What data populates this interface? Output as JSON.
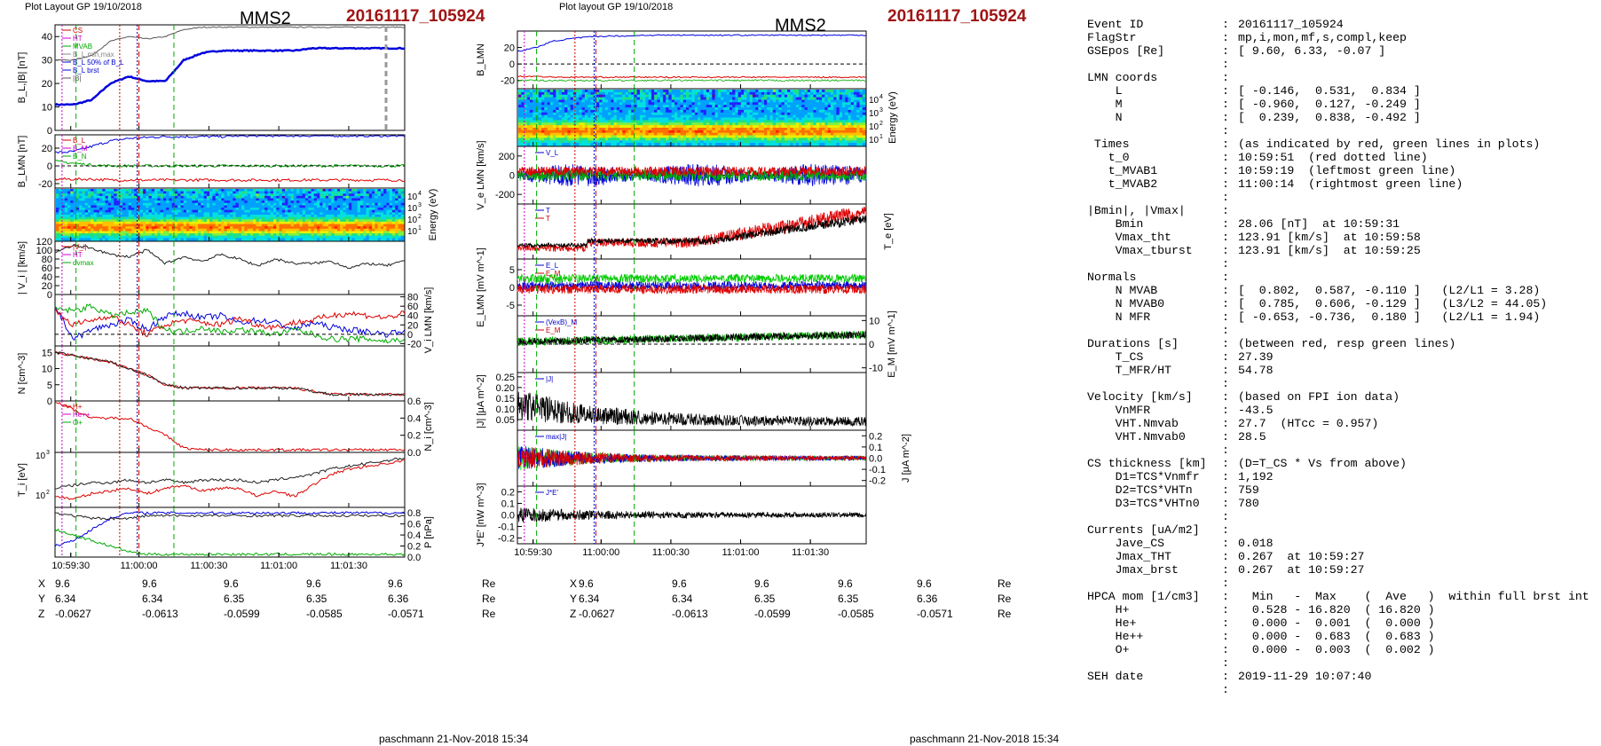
{
  "left_header": "Plot Layout GP 19/10/2018",
  "mid_header": "Plot layout GP 19/10/2018",
  "spacecraft": "MMS2",
  "event_id": "20161117_105924",
  "footer": "paschmann 21-Nov-2018 15:34",
  "time_ticks": [
    "10:59:30",
    "11:00:00",
    "11:00:30",
    "11:01:00",
    "11:01:30"
  ],
  "positions": {
    "labels": [
      "X",
      "Y",
      "Z"
    ],
    "unit": "Re",
    "X": [
      "9.6",
      "9.6",
      "9.6",
      "9.6",
      "9.6"
    ],
    "Y": [
      "6.34",
      "6.34",
      "6.35",
      "6.35",
      "6.36"
    ],
    "Z": [
      "-0.0627",
      "-0.0613",
      "-0.0599",
      "-0.0585",
      "-0.0571"
    ]
  },
  "info_lines": [
    [
      "Event ID",
      ":",
      "20161117_105924"
    ],
    [
      "FlagStr",
      ":",
      "mp,i,mon,mf,s,compl,keep"
    ],
    [
      "GSEpos [Re]",
      ":",
      "[ 9.60, 6.33, -0.07 ]"
    ],
    [
      "",
      ":",
      ""
    ],
    [
      "LMN coords",
      ":",
      ""
    ],
    [
      "    L",
      ":",
      "[ -0.146,  0.531,  0.834 ]"
    ],
    [
      "    M",
      ":",
      "[ -0.960,  0.127, -0.249 ]"
    ],
    [
      "    N",
      ":",
      "[  0.239,  0.838, -0.492 ]"
    ],
    [
      "",
      ":",
      ""
    ],
    [
      " Times",
      ":",
      "(as indicated by red, green lines in plots)"
    ],
    [
      "   t_0",
      ":",
      "10:59:51  (red dotted line)"
    ],
    [
      "   t_MVAB1",
      ":",
      "10:59:19  (leftmost green line)"
    ],
    [
      "   t_MVAB2",
      ":",
      "11:00:14  (rightmost green line)"
    ],
    [
      "",
      ":",
      ""
    ],
    [
      "|Bmin|, |Vmax|",
      ":",
      ""
    ],
    [
      "    Bmin",
      ":",
      "28.06 [nT]  at 10:59:31"
    ],
    [
      "    Vmax_tht",
      ":",
      "123.91 [km/s]  at 10:59:58"
    ],
    [
      "    Vmax_tburst",
      ":",
      "123.91 [km/s]  at 10:59:25"
    ],
    [
      "",
      ":",
      ""
    ],
    [
      "Normals",
      ":",
      ""
    ],
    [
      "    N MVAB",
      ":",
      "[  0.802,  0.587, -0.110 ]   (L2/L1 = 3.28)"
    ],
    [
      "    N MVAB0",
      ":",
      "[  0.785,  0.606, -0.129 ]   (L3/L2 = 44.05)"
    ],
    [
      "    N MFR",
      ":",
      "[ -0.653, -0.736,  0.180 ]   (L2/L1 = 1.94)"
    ],
    [
      "",
      ":",
      ""
    ],
    [
      "Durations [s]",
      ":",
      "(between red, resp green lines)"
    ],
    [
      "    T_CS",
      ":",
      "27.39"
    ],
    [
      "    T_MFR/HT",
      ":",
      "54.78"
    ],
    [
      "",
      ":",
      ""
    ],
    [
      "Velocity [km/s]",
      ":",
      "(based on FPI ion data)"
    ],
    [
      "    VnMFR",
      ":",
      "-43.5"
    ],
    [
      "    VHT.Nmvab",
      ":",
      "27.7  (HTcc = 0.957)"
    ],
    [
      "    VHT.Nmvab0",
      ":",
      "28.5"
    ],
    [
      "",
      ":",
      ""
    ],
    [
      "CS thickness [km]",
      ":",
      "(D=T_CS * Vs from above)"
    ],
    [
      "    D1=TCS*Vnmfr",
      ":",
      "1,192"
    ],
    [
      "    D2=TCS*VHTn",
      ":",
      "759"
    ],
    [
      "    D3=TCS*VHTn0",
      ":",
      "780"
    ],
    [
      "",
      ":",
      ""
    ],
    [
      "Currents [uA/m2]",
      ":",
      ""
    ],
    [
      "    Jave_CS",
      ":",
      "0.018"
    ],
    [
      "    Jmax_THT",
      ":",
      "0.267  at 10:59:27"
    ],
    [
      "    Jmax_brst",
      ":",
      "0.267  at 10:59:27"
    ],
    [
      "",
      ":",
      ""
    ],
    [
      "HPCA mom [1/cm3]",
      ":",
      "  Min   -  Max    (  Ave   )  within full brst int"
    ],
    [
      "    H+",
      ":",
      "  0.528 - 16.820  ( 16.820 )"
    ],
    [
      "    He+",
      ":",
      "  0.000 -  0.001  (  0.000 )"
    ],
    [
      "    He++",
      ":",
      "  0.000 -  0.683  (  0.683 )"
    ],
    [
      "    O+",
      ":",
      "  0.000 -  0.003  (  0.002 )"
    ],
    [
      "",
      ":",
      ""
    ],
    [
      "SEH date",
      ":",
      "2019-11-29 10:07:40"
    ],
    [
      "",
      ":",
      ""
    ]
  ],
  "chart_data": [
    {
      "type": "line",
      "panel": "left-B",
      "ylabel": "B_L,|B| [nT]",
      "ylim": [
        0,
        45
      ],
      "yticks": [
        "0",
        "10",
        "20",
        "30",
        "40"
      ],
      "legend": [
        "CS",
        "HT",
        "MVAB",
        "B_L,min,max",
        "B_L 50% of B_L",
        "B_L brst",
        "|B|"
      ],
      "series": [
        {
          "name": "B_L",
          "color": "#0000dd",
          "values": [
            11,
            11,
            13,
            20,
            23,
            21,
            21,
            30,
            33,
            34,
            34,
            34,
            34,
            34,
            35,
            35,
            35,
            35,
            35,
            35
          ]
        },
        {
          "name": "|B|",
          "color": "#555555",
          "values": [
            30,
            30,
            32,
            38,
            40,
            39,
            40,
            43,
            44,
            44,
            44,
            44,
            44,
            44,
            44,
            44,
            44,
            44,
            44,
            44
          ]
        }
      ]
    },
    {
      "type": "line",
      "panel": "left-BLMN",
      "ylabel": "B_LMN [nT]",
      "ylim": [
        -25,
        35
      ],
      "yticks": [
        "-20",
        "0",
        "20"
      ],
      "legend": [
        "B_L",
        "B_M",
        "B_N"
      ],
      "series": [
        {
          "name": "B_L",
          "color": "#0000dd",
          "values": [
            15,
            16,
            22,
            28,
            31,
            32,
            33,
            33,
            33,
            33,
            34,
            34,
            34,
            34,
            34,
            34,
            34,
            34,
            34,
            34
          ]
        },
        {
          "name": "B_M",
          "color": "#dd0000",
          "values": [
            -15,
            -15,
            -15,
            -16,
            -16,
            -16,
            -16,
            -16,
            -16,
            -16,
            -16,
            -16,
            -16,
            -16,
            -16,
            -16,
            -16,
            -16,
            -16,
            -16
          ]
        },
        {
          "name": "B_N",
          "color": "#00aa00",
          "values": [
            5,
            3,
            1,
            0,
            0,
            0,
            0,
            0,
            0,
            0,
            0,
            0,
            0,
            0,
            0,
            0,
            0,
            0,
            0,
            0
          ]
        }
      ]
    },
    {
      "type": "heatmap",
      "panel": "left-spectrogram",
      "ylabel": "Energy (eV)",
      "yticks": [
        "10^1",
        "10^2",
        "10^3",
        "10^4"
      ]
    },
    {
      "type": "line",
      "panel": "left-Vi",
      "ylabel": "| V_i | [km/s]",
      "ylim": [
        0,
        120
      ],
      "yticks": [
        "0",
        "20",
        "40",
        "60",
        "80",
        "100",
        "120"
      ],
      "legend": [
        "|V_i|",
        "HT",
        "dvmax"
      ],
      "series": [
        {
          "name": "|V_i|",
          "color": "#222222",
          "values": [
            95,
            110,
            105,
            90,
            85,
            100,
            70,
            85,
            75,
            90,
            80,
            65,
            80,
            70,
            70,
            75,
            60,
            70,
            65,
            75
          ]
        }
      ]
    },
    {
      "type": "line",
      "panel": "left-ViLMN",
      "ylabel": "V_i LMN [km/s]",
      "ylim": [
        -25,
        85
      ],
      "yticks": [
        "-20",
        "0",
        "20",
        "40",
        "60",
        "80"
      ],
      "series": [
        {
          "name": "V_L",
          "color": "#0000dd",
          "values": [
            60,
            -10,
            10,
            20,
            30,
            10,
            40,
            45,
            35,
            40,
            25,
            30,
            25,
            10,
            25,
            15,
            10,
            5,
            0,
            10
          ]
        },
        {
          "name": "V_M",
          "color": "#dd0000",
          "values": [
            50,
            20,
            30,
            40,
            20,
            0,
            20,
            30,
            25,
            20,
            35,
            20,
            15,
            25,
            30,
            40,
            45,
            40,
            35,
            45
          ]
        },
        {
          "name": "V_N",
          "color": "#00aa00",
          "values": [
            55,
            50,
            60,
            40,
            45,
            50,
            10,
            5,
            15,
            5,
            10,
            5,
            0,
            10,
            0,
            -10,
            -10,
            -10,
            -15,
            -10
          ]
        }
      ]
    },
    {
      "type": "line",
      "panel": "left-N",
      "ylabel": "N [cm^-3]",
      "ylim": [
        0,
        17
      ],
      "yticks": [
        "0",
        "5",
        "10",
        "15"
      ],
      "series": [
        {
          "name": "Ne",
          "color": "#dd0000",
          "values": [
            15,
            14,
            13,
            12,
            10,
            8,
            5,
            4,
            4,
            4,
            4,
            4,
            4,
            4,
            3,
            2,
            2,
            2,
            2,
            2
          ]
        },
        {
          "name": "Ni",
          "color": "#222222",
          "values": [
            15,
            14,
            13,
            12,
            10,
            8,
            5,
            4,
            4,
            4,
            4,
            4,
            4,
            4,
            3,
            2,
            2,
            2,
            2,
            2
          ]
        }
      ]
    },
    {
      "type": "line",
      "panel": "left-Ni-species",
      "ylabel": "N_i [cm^-3]",
      "ylim": [
        0,
        0.6
      ],
      "yticks": [
        "0.0",
        "0.2",
        "0.4",
        "0.6"
      ],
      "legend": [
        "H+",
        "He++",
        "O+"
      ],
      "series": [
        {
          "name": "He++",
          "color": "#dd0000",
          "values": [
            0.6,
            0.5,
            0.4,
            0.4,
            0.4,
            0.3,
            0.2,
            0.05,
            0.03,
            0.03,
            0.03,
            0.03,
            0.03,
            0.03,
            0.03,
            0.03,
            0.03,
            0.03,
            0.03,
            0.03
          ]
        }
      ]
    },
    {
      "type": "line",
      "panel": "left-Ti",
      "ylabel": "T_i [eV]",
      "yticks": [
        "10^2",
        "10^3"
      ],
      "series": [
        {
          "name": "T_par",
          "color": "#222222",
          "values": [
            0.35,
            0.4,
            0.45,
            0.45,
            0.5,
            0.45,
            0.5,
            0.45,
            0.5,
            0.5,
            0.5,
            0.45,
            0.5,
            0.55,
            0.6,
            0.7,
            0.75,
            0.8,
            0.85,
            0.9
          ]
        },
        {
          "name": "T_perp",
          "color": "#dd0000",
          "values": [
            0.2,
            0.15,
            0.25,
            0.3,
            0.35,
            0.25,
            0.35,
            0.4,
            0.3,
            0.35,
            0.35,
            0.2,
            0.3,
            0.2,
            0.4,
            0.6,
            0.7,
            0.75,
            0.8,
            0.85
          ]
        }
      ]
    },
    {
      "type": "line",
      "panel": "left-P",
      "ylabel": "P [nPa]",
      "ylim": [
        0,
        0.9
      ],
      "yticks": [
        "0.0",
        "0.2",
        "0.4",
        "0.6",
        "0.8"
      ],
      "series": [
        {
          "name": "P_B",
          "color": "#0000dd",
          "values": [
            0.2,
            0.3,
            0.5,
            0.7,
            0.8,
            0.8,
            0.8,
            0.8,
            0.8,
            0.8,
            0.8,
            0.8,
            0.8,
            0.8,
            0.8,
            0.8,
            0.8,
            0.8,
            0.8,
            0.8
          ]
        },
        {
          "name": "P_tot",
          "color": "#222222",
          "values": [
            0.8,
            0.75,
            0.7,
            0.7,
            0.7,
            0.75,
            0.75,
            0.75,
            0.75,
            0.75,
            0.75,
            0.75,
            0.75,
            0.75,
            0.75,
            0.75,
            0.75,
            0.75,
            0.75,
            0.75
          ]
        },
        {
          "name": "P_th",
          "color": "#00aa00",
          "values": [
            0.5,
            0.4,
            0.3,
            0.2,
            0.1,
            0.05,
            0.05,
            0.05,
            0.05,
            0.05,
            0.05,
            0.05,
            0.05,
            0.05,
            0.05,
            0.05,
            0.05,
            0.05,
            0.05,
            0.05
          ]
        }
      ]
    },
    {
      "type": "line",
      "panel": "mid-B",
      "ylabel": "B_LMN",
      "ylim": [
        -30,
        40
      ],
      "yticks": [
        "-20",
        "0",
        "20"
      ],
      "series": [
        {
          "name": "B_L",
          "color": "#0000dd",
          "values": [
            15,
            20,
            28,
            31,
            33,
            34,
            34,
            35,
            35,
            35,
            35,
            35,
            35,
            35,
            35,
            35,
            35,
            35,
            35,
            35
          ]
        },
        {
          "name": "B_M",
          "color": "#dd0000",
          "values": [
            -15,
            -15,
            -16,
            -16,
            -16,
            -16,
            -16,
            -16,
            -16,
            -16,
            -16,
            -16,
            -16,
            -16,
            -16,
            -16,
            -16,
            -16,
            -16,
            -16
          ]
        }
      ]
    },
    {
      "type": "heatmap",
      "panel": "mid-spectrogram",
      "ylabel": "Energy (eV)",
      "yticks": [
        "10^1",
        "10^2",
        "10^3",
        "10^4"
      ]
    },
    {
      "type": "line",
      "panel": "mid-Ve",
      "ylabel": "V_e LMN [km/s]",
      "ylim": [
        -300,
        300
      ],
      "yticks": [
        "-200",
        "0",
        "200"
      ],
      "legend": [
        "V_L"
      ]
    },
    {
      "type": "line",
      "panel": "mid-Te",
      "ylabel": "T_e [eV]",
      "legend": [
        "T",
        "T"
      ]
    },
    {
      "type": "line",
      "panel": "mid-E",
      "ylabel": "E_LMN [mV m^-1]",
      "ylim": [
        -8,
        8
      ],
      "yticks": [
        "-5",
        "0",
        "5"
      ],
      "legend": [
        "E_L",
        "E_M",
        "E_N"
      ]
    },
    {
      "type": "line",
      "panel": "mid-EM",
      "ylabel": "E_M [mV m^-1]",
      "ylim": [
        -12,
        12
      ],
      "yticks": [
        "-10",
        "0",
        "10"
      ],
      "legend": [
        "(VexB)_M",
        "E_M"
      ]
    },
    {
      "type": "line",
      "panel": "mid-J",
      "ylabel": "|J| [μA m^-2]",
      "ylim": [
        0,
        0.27
      ],
      "yticks": [
        "0.05",
        "0.10",
        "0.15",
        "0.20",
        "0.25"
      ],
      "legend": [
        "|J|"
      ]
    },
    {
      "type": "line",
      "panel": "mid-JLMN",
      "ylabel": "J [μA m^-2]",
      "ylim": [
        -0.25,
        0.25
      ],
      "yticks": [
        "-0.2",
        "-0.1",
        "0.0",
        "0.1",
        "0.2"
      ],
      "legend": [
        "max|J|"
      ]
    },
    {
      "type": "line",
      "panel": "mid-JE",
      "ylabel": "J*E' [nW m^-3]",
      "ylim": [
        -0.25,
        0.25
      ],
      "yticks": [
        "-0.2",
        "-0.1",
        "0.0",
        "0.1",
        "0.2"
      ],
      "legend": [
        "J*E'"
      ]
    }
  ]
}
